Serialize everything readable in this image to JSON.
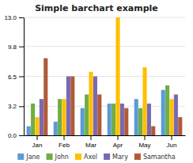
{
  "chart_data": {
    "type": "bar",
    "title": "Simple barchart example",
    "categories": [
      "Jan",
      "Feb",
      "Mar",
      "Apr",
      "May",
      "Jun"
    ],
    "series": [
      {
        "name": "Jane",
        "color": "#5b9bd5",
        "values": [
          1.0,
          1.5,
          3.0,
          3.5,
          4.0,
          5.0
        ]
      },
      {
        "name": "John",
        "color": "#70ad47",
        "values": [
          3.5,
          4.0,
          4.5,
          3.5,
          3.0,
          5.5
        ]
      },
      {
        "name": "Axel",
        "color": "#ffc000",
        "values": [
          2.0,
          4.0,
          7.0,
          13.0,
          7.5,
          4.0
        ]
      },
      {
        "name": "Mary",
        "color": "#7b68b0",
        "values": [
          4.0,
          6.5,
          6.5,
          3.5,
          3.5,
          4.5
        ]
      },
      {
        "name": "Samantha",
        "color": "#b05a3a",
        "values": [
          8.5,
          6.5,
          4.5,
          3.0,
          1.0,
          2.0
        ]
      }
    ],
    "ylim": [
      0.0,
      13.0
    ],
    "yticks": [
      {
        "value": 0.0,
        "label": "0.0"
      },
      3.2,
      6.5,
      9.8,
      {
        "value": 13.0,
        "label": "13.0"
      }
    ],
    "grid": true,
    "legend": "bottom"
  }
}
